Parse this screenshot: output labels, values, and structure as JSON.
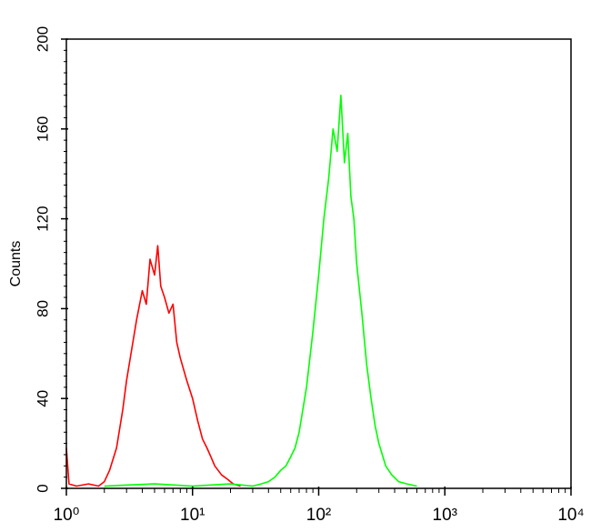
{
  "chart_data": {
    "type": "line",
    "ylabel": "Counts",
    "xscale": "log",
    "xlim": [
      1,
      10000
    ],
    "xticks": [
      {
        "value": 1,
        "label": "10⁰"
      },
      {
        "value": 10,
        "label": "10¹"
      },
      {
        "value": 100,
        "label": "10²"
      },
      {
        "value": 1000,
        "label": "10³"
      },
      {
        "value": 10000,
        "label": "10⁴"
      }
    ],
    "ylim": [
      0,
      200
    ],
    "yticks": [
      0,
      40,
      80,
      120,
      160,
      200
    ],
    "series": [
      {
        "color": "#ff0000",
        "x": [
          1,
          1.05,
          1.2,
          1.5,
          1.8,
          2.0,
          2.2,
          2.5,
          2.8,
          3.0,
          3.3,
          3.6,
          4.0,
          4.3,
          4.6,
          5.0,
          5.3,
          5.6,
          6.0,
          6.5,
          7.0,
          7.5,
          8.0,
          9.0,
          10,
          11,
          12,
          13,
          14,
          15,
          17,
          19,
          21,
          24
        ],
        "values": [
          18,
          2,
          1,
          2,
          1,
          3,
          8,
          18,
          35,
          48,
          62,
          75,
          88,
          82,
          102,
          95,
          108,
          90,
          85,
          78,
          82,
          65,
          58,
          48,
          40,
          30,
          22,
          18,
          14,
          10,
          6,
          4,
          2,
          1
        ]
      },
      {
        "color": "#00ff00",
        "x": [
          2,
          5,
          10,
          20,
          30,
          35,
          40,
          45,
          50,
          55,
          60,
          65,
          70,
          80,
          90,
          100,
          110,
          120,
          130,
          140,
          150,
          160,
          170,
          180,
          190,
          200,
          220,
          240,
          260,
          280,
          300,
          340,
          380,
          430,
          500,
          600
        ],
        "values": [
          1,
          2,
          1,
          2,
          1,
          2,
          3,
          5,
          8,
          10,
          14,
          18,
          25,
          45,
          70,
          95,
          120,
          138,
          160,
          150,
          175,
          145,
          158,
          130,
          120,
          100,
          78,
          55,
          40,
          28,
          20,
          10,
          6,
          3,
          2,
          1
        ]
      }
    ]
  }
}
